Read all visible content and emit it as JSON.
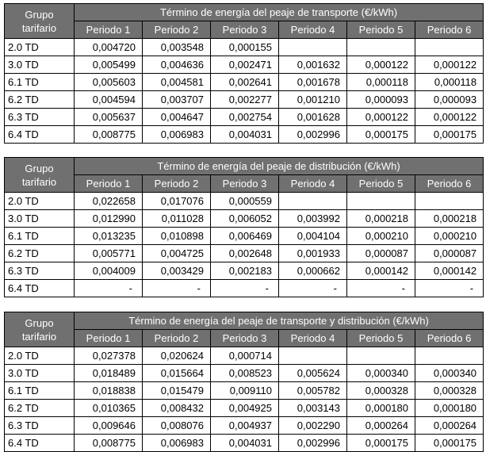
{
  "group_header": [
    "Grupo",
    "tarifario"
  ],
  "periods": [
    "Periodo 1",
    "Periodo 2",
    "Periodo 3",
    "Periodo 4",
    "Periodo 5",
    "Periodo 6"
  ],
  "tables": [
    {
      "title": "Término de energía del peaje de transporte (€/kWh)",
      "rows": [
        {
          "group": "2.0 TD",
          "values": [
            "0,004720",
            "0,003548",
            "0,000155",
            "",
            "",
            ""
          ]
        },
        {
          "group": "3.0 TD",
          "values": [
            "0,005499",
            "0,004636",
            "0,002471",
            "0,001632",
            "0,000122",
            "0,000122"
          ]
        },
        {
          "group": "6.1 TD",
          "values": [
            "0,005603",
            "0,004581",
            "0,002641",
            "0,001678",
            "0,000118",
            "0,000118"
          ]
        },
        {
          "group": "6.2 TD",
          "values": [
            "0,004594",
            "0,003707",
            "0,002277",
            "0,001210",
            "0,000093",
            "0,000093"
          ]
        },
        {
          "group": "6.3 TD",
          "values": [
            "0,005637",
            "0,004647",
            "0,002754",
            "0,001628",
            "0,000122",
            "0,000122"
          ]
        },
        {
          "group": "6.4 TD",
          "values": [
            "0,008775",
            "0,006983",
            "0,004031",
            "0,002996",
            "0,000175",
            "0,000175"
          ]
        }
      ]
    },
    {
      "title": "Término de energía del peaje de distribución (€/kWh)",
      "rows": [
        {
          "group": "2.0 TD",
          "values": [
            "0,022658",
            "0,017076",
            "0,000559",
            "",
            "",
            ""
          ]
        },
        {
          "group": "3.0 TD",
          "values": [
            "0,012990",
            "0,011028",
            "0,006052",
            "0,003992",
            "0,000218",
            "0,000218"
          ]
        },
        {
          "group": "6.1 TD",
          "values": [
            "0,013235",
            "0,010898",
            "0,006469",
            "0,004104",
            "0,000210",
            "0,000210"
          ]
        },
        {
          "group": "6.2 TD",
          "values": [
            "0,005771",
            "0,004725",
            "0,002648",
            "0,001933",
            "0,000087",
            "0,000087"
          ]
        },
        {
          "group": "6.3 TD",
          "values": [
            "0,004009",
            "0,003429",
            "0,002183",
            "0,000662",
            "0,000142",
            "0,000142"
          ]
        },
        {
          "group": "6.4 TD",
          "values": [
            "-",
            "-",
            "-",
            "-",
            "-",
            "-"
          ]
        }
      ]
    },
    {
      "title": "Término de energía del peaje de transporte y distribución (€/kWh)",
      "rows": [
        {
          "group": "2.0 TD",
          "values": [
            "0,027378",
            "0,020624",
            "0,000714",
            "",
            "",
            ""
          ]
        },
        {
          "group": "3.0 TD",
          "values": [
            "0,018489",
            "0,015664",
            "0,008523",
            "0,005624",
            "0,000340",
            "0,000340"
          ]
        },
        {
          "group": "6.1 TD",
          "values": [
            "0,018838",
            "0,015479",
            "0,009110",
            "0,005782",
            "0,000328",
            "0,000328"
          ]
        },
        {
          "group": "6.2 TD",
          "values": [
            "0,010365",
            "0,008432",
            "0,004925",
            "0,003143",
            "0,000180",
            "0,000180"
          ]
        },
        {
          "group": "6.3 TD",
          "values": [
            "0,009646",
            "0,008076",
            "0,004937",
            "0,002290",
            "0,000264",
            "0,000264"
          ]
        },
        {
          "group": "6.4 TD",
          "values": [
            "0,008775",
            "0,006983",
            "0,004031",
            "0,002996",
            "0,000175",
            "0,000175"
          ]
        }
      ]
    }
  ]
}
